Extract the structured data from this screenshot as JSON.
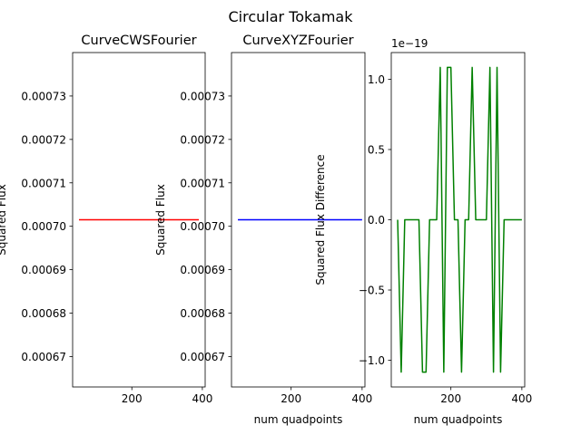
{
  "suptitle": "Circular Tokamak",
  "chart_data": [
    {
      "type": "line",
      "title": "CurveCWSFourier",
      "xlabel": "",
      "ylabel": "Squared Flux",
      "xlim": [
        32,
        408
      ],
      "ylim": [
        0.000663,
        0.00074
      ],
      "xticks": [
        200,
        400
      ],
      "xtick_labels": [
        "200",
        "400"
      ],
      "yticks": [
        0.00067,
        0.00068,
        0.00069,
        0.0007,
        0.00071,
        0.00072,
        0.00073
      ],
      "ytick_labels": [
        "0.00067",
        "0.00068",
        "0.00069",
        "0.00070",
        "0.00071",
        "0.00072",
        "0.00073"
      ],
      "series": [
        {
          "color": "#ff0000",
          "x": [
            50,
            390
          ],
          "y": [
            0.0007015,
            0.0007015
          ]
        }
      ]
    },
    {
      "type": "line",
      "title": "CurveXYZFourier",
      "xlabel": "num quadpoints",
      "ylabel": "Squared Flux",
      "xlim": [
        32,
        408
      ],
      "ylim": [
        0.000663,
        0.00074
      ],
      "xticks": [
        200,
        400
      ],
      "xtick_labels": [
        "200",
        "400"
      ],
      "yticks": [
        0.00067,
        0.00068,
        0.00069,
        0.0007,
        0.00071,
        0.00072,
        0.00073
      ],
      "ytick_labels": [
        "0.00067",
        "0.00068",
        "0.00069",
        "0.00070",
        "0.00071",
        "0.00072",
        "0.00073"
      ],
      "series": [
        {
          "color": "#0000ff",
          "x": [
            50,
            400
          ],
          "y": [
            0.0007015,
            0.0007015
          ]
        }
      ]
    },
    {
      "type": "line",
      "title": "",
      "xlabel": "num quadpoints",
      "ylabel": "Squared Flux Difference",
      "offset_text": "1e−19",
      "xlim": [
        32,
        408
      ],
      "ylim": [
        -1.19,
        1.19
      ],
      "xticks": [
        200,
        400
      ],
      "xtick_labels": [
        "200",
        "400"
      ],
      "yticks": [
        -1.0,
        -0.5,
        0.0,
        0.5,
        1.0
      ],
      "ytick_labels": [
        "−1.0",
        "−0.5",
        "0.0",
        "0.5",
        "1.0"
      ],
      "series": [
        {
          "color": "#008000",
          "x": [
            50,
            60,
            70,
            80,
            90,
            100,
            110,
            120,
            130,
            140,
            150,
            160,
            170,
            180,
            190,
            200,
            210,
            220,
            230,
            240,
            250,
            260,
            270,
            280,
            290,
            300,
            310,
            320,
            330,
            340,
            350,
            360,
            370,
            380,
            390,
            400
          ],
          "y": [
            0,
            -1.084,
            0,
            0,
            0,
            0,
            0,
            -1.084,
            -1.084,
            0,
            0,
            0,
            1.084,
            -1.084,
            1.084,
            1.084,
            0,
            0,
            -1.084,
            0,
            0,
            1.084,
            0,
            0,
            0,
            0,
            1.084,
            -1.084,
            1.084,
            -1.084,
            0,
            0,
            0,
            0,
            0,
            0
          ]
        }
      ]
    }
  ]
}
